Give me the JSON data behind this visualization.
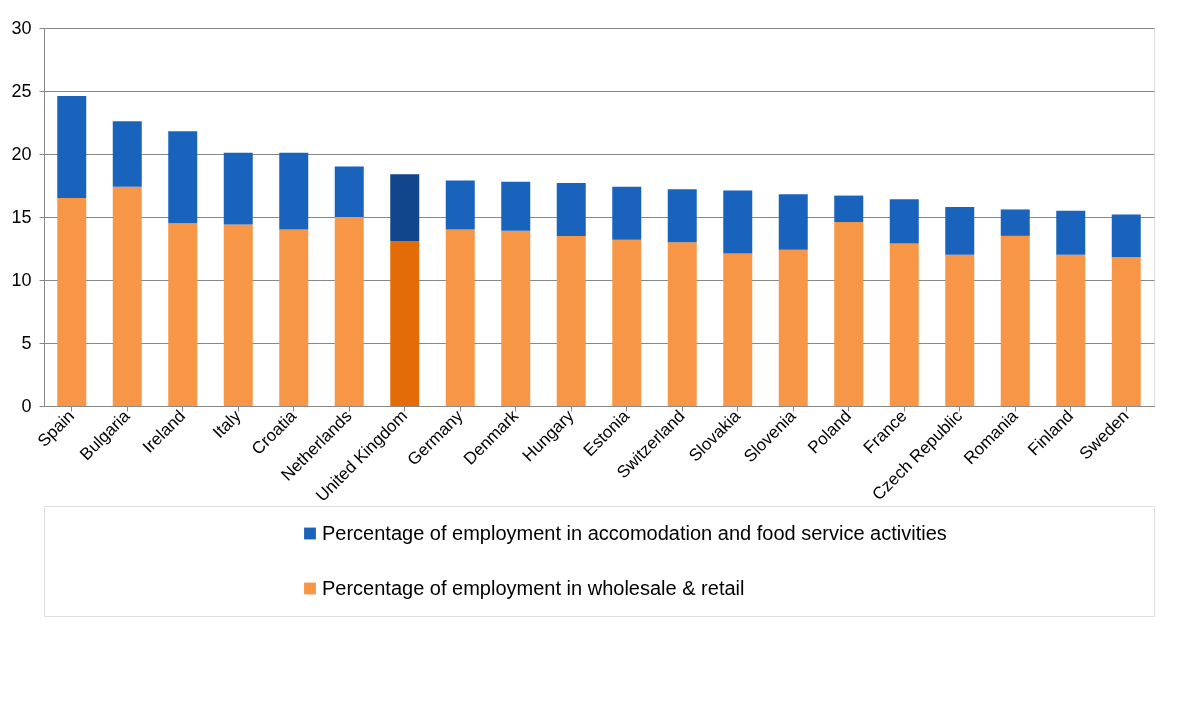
{
  "chart_data": {
    "type": "bar",
    "stacked": true,
    "categories": [
      "Spain",
      "Bulgaria",
      "Ireland",
      "Italy",
      "Croatia",
      "Netherlands",
      "United Kingdom",
      "Germany",
      "Denmark",
      "Hungary",
      "Estonia",
      "Switzerland",
      "Slovakia",
      "Slovenia",
      "Poland",
      "France",
      "Czech Republic",
      "Romania",
      "Finland",
      "Sweden"
    ],
    "series": [
      {
        "name": "Percentage of employment in wholesale & retail",
        "color": "#f79646",
        "colors": [
          "#f79646",
          "#f79646",
          "#f79646",
          "#f79646",
          "#f79646",
          "#f79646",
          "#e36c09",
          "#f79646",
          "#f79646",
          "#f79646",
          "#f79646",
          "#f79646",
          "#f79646",
          "#f79646",
          "#f79646",
          "#f79646",
          "#f79646",
          "#f79646",
          "#f79646",
          "#f79646"
        ],
        "values": [
          16.5,
          17.4,
          14.5,
          14.4,
          14.0,
          15.0,
          13.1,
          14.0,
          13.9,
          13.5,
          13.2,
          13.0,
          12.1,
          12.4,
          14.6,
          12.9,
          12.0,
          13.5,
          12.0,
          11.8
        ]
      },
      {
        "name": "Percentage of employment in accomodation and food service activities",
        "color": "#1a63bd",
        "colors": [
          "#1a63bd",
          "#1a63bd",
          "#1a63bd",
          "#1a63bd",
          "#1a63bd",
          "#1a63bd",
          "#11468c",
          "#1a63bd",
          "#1a63bd",
          "#1a63bd",
          "#1a63bd",
          "#1a63bd",
          "#1a63bd",
          "#1a63bd",
          "#1a63bd",
          "#1a63bd",
          "#1a63bd",
          "#1a63bd",
          "#1a63bd",
          "#1a63bd"
        ],
        "values": [
          8.1,
          5.2,
          7.3,
          5.7,
          6.1,
          4.0,
          5.3,
          3.9,
          3.9,
          4.2,
          4.2,
          4.2,
          5.0,
          4.4,
          2.1,
          3.5,
          3.8,
          2.1,
          3.5,
          3.4
        ]
      }
    ],
    "ylim": [
      0,
      30
    ],
    "yticks": [
      0,
      5,
      10,
      15,
      20,
      25,
      30
    ],
    "grid": "y",
    "legend": "bottom"
  }
}
